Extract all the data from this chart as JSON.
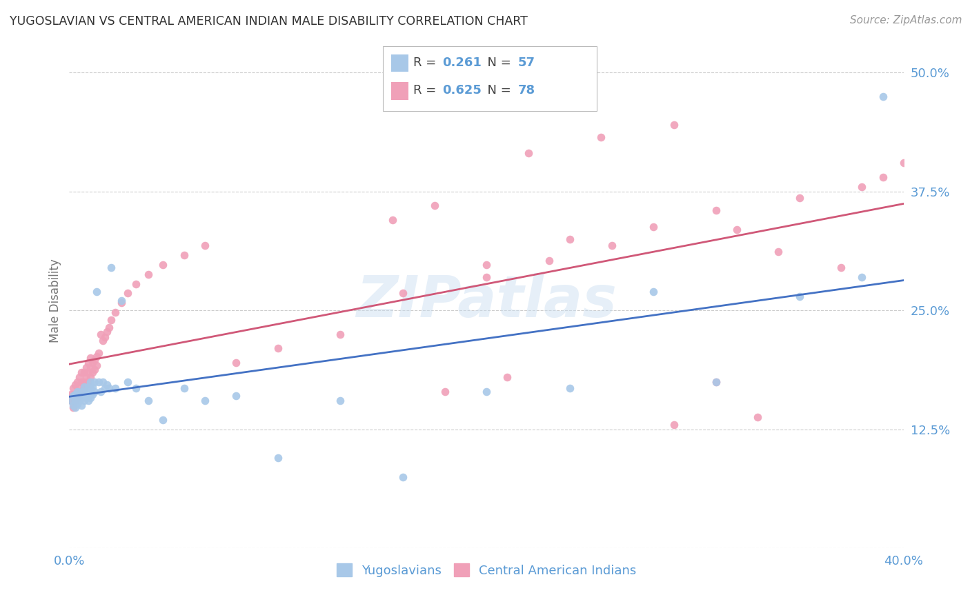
{
  "title": "YUGOSLAVIAN VS CENTRAL AMERICAN INDIAN MALE DISABILITY CORRELATION CHART",
  "source": "Source: ZipAtlas.com",
  "ylabel": "Male Disability",
  "yticks": [
    0.0,
    0.125,
    0.25,
    0.375,
    0.5
  ],
  "ytick_labels": [
    "",
    "12.5%",
    "25.0%",
    "37.5%",
    "50.0%"
  ],
  "xlim": [
    0.0,
    0.4
  ],
  "ylim": [
    0.0,
    0.52
  ],
  "watermark": "ZIPatlas",
  "legend_R1_val": "0.261",
  "legend_N1_val": "57",
  "legend_R2_val": "0.625",
  "legend_N2_val": "78",
  "color_blue": "#a8c8e8",
  "color_pink": "#f0a0b8",
  "line_blue": "#4472c4",
  "line_pink": "#d05878",
  "background": "#ffffff",
  "grid_color": "#cccccc",
  "label_color": "#5b9bd5",
  "legend_label1": "Yugoslavians",
  "legend_label2": "Central American Indians",
  "yug_x": [
    0.001,
    0.002,
    0.002,
    0.003,
    0.003,
    0.003,
    0.004,
    0.004,
    0.004,
    0.005,
    0.005,
    0.005,
    0.006,
    0.006,
    0.006,
    0.007,
    0.007,
    0.007,
    0.008,
    0.008,
    0.008,
    0.009,
    0.009,
    0.01,
    0.01,
    0.01,
    0.011,
    0.011,
    0.012,
    0.012,
    0.013,
    0.014,
    0.015,
    0.016,
    0.017,
    0.018,
    0.019,
    0.02,
    0.022,
    0.025,
    0.028,
    0.032,
    0.038,
    0.045,
    0.055,
    0.065,
    0.08,
    0.1,
    0.13,
    0.16,
    0.2,
    0.24,
    0.28,
    0.31,
    0.35,
    0.38,
    0.39
  ],
  "yug_y": [
    0.155,
    0.16,
    0.15,
    0.162,
    0.155,
    0.148,
    0.158,
    0.165,
    0.152,
    0.16,
    0.155,
    0.162,
    0.158,
    0.165,
    0.15,
    0.17,
    0.16,
    0.155,
    0.165,
    0.158,
    0.162,
    0.17,
    0.155,
    0.168,
    0.158,
    0.175,
    0.162,
    0.17,
    0.165,
    0.175,
    0.27,
    0.175,
    0.165,
    0.175,
    0.168,
    0.172,
    0.168,
    0.295,
    0.168,
    0.26,
    0.175,
    0.168,
    0.155,
    0.135,
    0.168,
    0.155,
    0.16,
    0.095,
    0.155,
    0.075,
    0.165,
    0.168,
    0.27,
    0.175,
    0.265,
    0.285,
    0.475
  ],
  "cam_x": [
    0.001,
    0.001,
    0.002,
    0.002,
    0.002,
    0.003,
    0.003,
    0.003,
    0.004,
    0.004,
    0.004,
    0.005,
    0.005,
    0.005,
    0.006,
    0.006,
    0.006,
    0.007,
    0.007,
    0.007,
    0.008,
    0.008,
    0.008,
    0.009,
    0.009,
    0.009,
    0.01,
    0.01,
    0.01,
    0.011,
    0.011,
    0.012,
    0.012,
    0.013,
    0.013,
    0.014,
    0.015,
    0.016,
    0.017,
    0.018,
    0.019,
    0.02,
    0.022,
    0.025,
    0.028,
    0.032,
    0.038,
    0.045,
    0.055,
    0.065,
    0.08,
    0.1,
    0.13,
    0.16,
    0.2,
    0.24,
    0.28,
    0.31,
    0.35,
    0.38,
    0.39,
    0.4,
    0.155,
    0.175,
    0.22,
    0.255,
    0.29,
    0.32,
    0.34,
    0.37,
    0.2,
    0.23,
    0.26,
    0.29,
    0.31,
    0.33,
    0.18,
    0.21
  ],
  "cam_y": [
    0.155,
    0.162,
    0.148,
    0.16,
    0.168,
    0.155,
    0.162,
    0.172,
    0.158,
    0.165,
    0.175,
    0.16,
    0.17,
    0.18,
    0.165,
    0.175,
    0.185,
    0.168,
    0.175,
    0.185,
    0.172,
    0.18,
    0.19,
    0.175,
    0.185,
    0.195,
    0.18,
    0.19,
    0.2,
    0.185,
    0.195,
    0.188,
    0.198,
    0.192,
    0.202,
    0.205,
    0.225,
    0.218,
    0.222,
    0.228,
    0.232,
    0.24,
    0.248,
    0.258,
    0.268,
    0.278,
    0.288,
    0.298,
    0.308,
    0.318,
    0.195,
    0.21,
    0.225,
    0.268,
    0.298,
    0.325,
    0.338,
    0.355,
    0.368,
    0.38,
    0.39,
    0.405,
    0.345,
    0.36,
    0.415,
    0.432,
    0.445,
    0.335,
    0.312,
    0.295,
    0.285,
    0.302,
    0.318,
    0.13,
    0.175,
    0.138,
    0.165,
    0.18
  ]
}
